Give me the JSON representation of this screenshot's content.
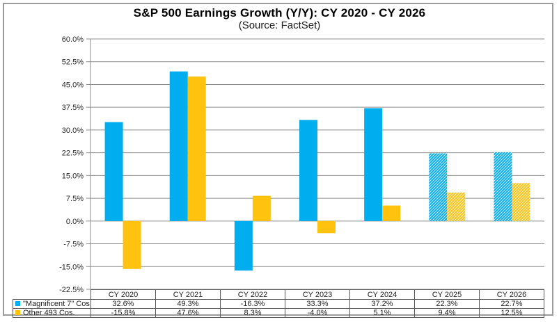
{
  "chart_data": {
    "type": "bar",
    "title": "S&P 500 Earnings Growth (Y/Y): CY 2020 - CY 2026",
    "subtitle": "(Source: FactSet)",
    "categories": [
      "CY 2020",
      "CY 2021",
      "CY 2022",
      "CY 2023",
      "CY 2024",
      "CY 2025",
      "CY 2026"
    ],
    "series": [
      {
        "name": "\"Magnificent 7\" Cos.",
        "color": "#00AEEF",
        "values": [
          32.6,
          49.3,
          -16.3,
          33.3,
          37.2,
          22.3,
          22.7
        ],
        "display": [
          "32.6%",
          "49.3%",
          "-16.3%",
          "33.3%",
          "37.2%",
          "22.3%",
          "22.7%"
        ]
      },
      {
        "name": "Other 493 Cos.",
        "color": "#FFC20E",
        "values": [
          -15.8,
          47.6,
          8.3,
          -4.0,
          5.1,
          9.4,
          12.5
        ],
        "display": [
          "-15.8%",
          "47.6%",
          "8.3%",
          "-4.0%",
          "5.1%",
          "9.4%",
          "12.5%"
        ]
      }
    ],
    "hatched_categories": [
      "CY 2025",
      "CY 2026"
    ],
    "y_axis": {
      "min": -22.5,
      "max": 60.0,
      "step": 7.5,
      "tick_labels": [
        "60.0%",
        "52.5%",
        "45.0%",
        "37.5%",
        "30.0%",
        "22.5%",
        "15.0%",
        "7.5%",
        "0.0%",
        "-7.5%",
        "-15.0%",
        "-22.5%"
      ]
    },
    "grid": true,
    "legend_position": "data-table-left",
    "colors": {
      "grid": "#8c8c8c",
      "axis": "#8c8c8c",
      "table_border": "#595959",
      "frame": "#9a9a9a"
    }
  }
}
